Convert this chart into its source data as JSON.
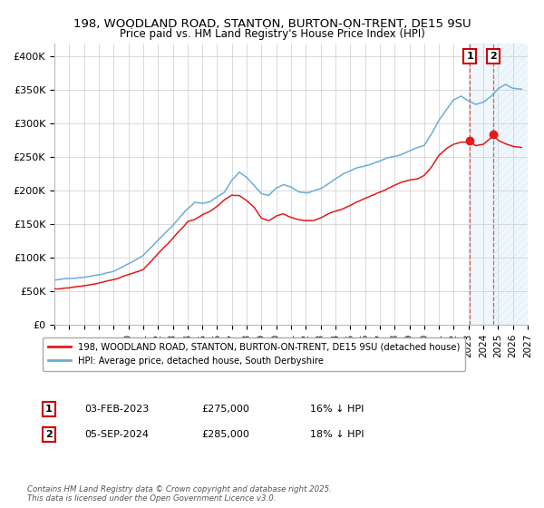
{
  "title_line1": "198, WOODLAND ROAD, STANTON, BURTON-ON-TRENT, DE15 9SU",
  "title_line2": "Price paid vs. HM Land Registry's House Price Index (HPI)",
  "ylim": [
    0,
    420000
  ],
  "xlim_start": 1995.0,
  "xlim_end": 2027.0,
  "yticks": [
    0,
    50000,
    100000,
    150000,
    200000,
    250000,
    300000,
    350000,
    400000
  ],
  "ytick_labels": [
    "£0",
    "£50K",
    "£100K",
    "£150K",
    "£200K",
    "£250K",
    "£300K",
    "£350K",
    "£400K"
  ],
  "xticks": [
    1995,
    1996,
    1997,
    1998,
    1999,
    2000,
    2001,
    2002,
    2003,
    2004,
    2005,
    2006,
    2007,
    2008,
    2009,
    2010,
    2011,
    2012,
    2013,
    2014,
    2015,
    2016,
    2017,
    2018,
    2019,
    2020,
    2021,
    2022,
    2023,
    2024,
    2025,
    2026,
    2027
  ],
  "hpi_color": "#6baed6",
  "price_color": "#e41a1c",
  "vline_color": "#c0392b",
  "shade_color": "#aad4f0",
  "shade_alpha": 0.18,
  "hatch_color": "#aad4f0",
  "grid_color": "#cccccc",
  "background_color": "#ffffff",
  "legend_label_price": "198, WOODLAND ROAD, STANTON, BURTON-ON-TRENT, DE15 9SU (detached house)",
  "legend_label_hpi": "HPI: Average price, detached house, South Derbyshire",
  "sale1_date": 2023.085,
  "sale1_price": 275000,
  "sale2_date": 2024.67,
  "sale2_price": 285000,
  "sale1_text": "03-FEB-2023",
  "sale1_amount": "£275,000",
  "sale1_hpi": "16% ↓ HPI",
  "sale2_text": "05-SEP-2024",
  "sale2_amount": "£285,000",
  "sale2_hpi": "18% ↓ HPI",
  "footnote": "Contains HM Land Registry data © Crown copyright and database right 2025.\nThis data is licensed under the Open Government Licence v3.0."
}
